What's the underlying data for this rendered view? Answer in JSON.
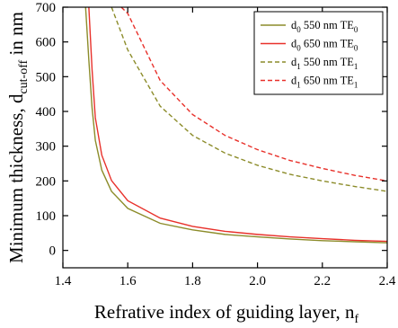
{
  "chart_data": {
    "type": "line",
    "title": "",
    "xlabel": {
      "main": "Refrative index of guiding layer, n",
      "sub": "f"
    },
    "ylabel": {
      "main": "Minimum thickness, d",
      "sub": "cut-off",
      "tail": " in nm"
    },
    "xlim": [
      1.4,
      2.4
    ],
    "ylim": [
      -50,
      700
    ],
    "xticks": [
      "1.4",
      "1.6",
      "1.8",
      "2.0",
      "2.2",
      "2.4"
    ],
    "yticks": [
      "0",
      "100",
      "200",
      "300",
      "400",
      "500",
      "600",
      "700"
    ],
    "grid": false,
    "legend_position": "top-right",
    "series": [
      {
        "name": "d0 550 nm TE0",
        "legend": {
          "pre": "d",
          "preSub": "0",
          "mid": " 550 nm TE",
          "postSub": "0"
        },
        "color": "#8c8c2a",
        "dash": "solid",
        "x": [
          1.47,
          1.48,
          1.49,
          1.5,
          1.52,
          1.55,
          1.6,
          1.7,
          1.8,
          1.9,
          2.0,
          2.1,
          2.2,
          2.3,
          2.4
        ],
        "y": [
          700,
          548,
          410,
          317,
          231,
          170,
          121,
          78,
          59,
          46,
          39,
          33,
          28,
          25,
          22
        ]
      },
      {
        "name": "d0 650 nm TE0",
        "legend": {
          "pre": "d",
          "preSub": "0",
          "mid": " 650 nm TE",
          "postSub": "0"
        },
        "color": "#e8312b",
        "dash": "solid",
        "x": [
          1.48,
          1.49,
          1.5,
          1.52,
          1.55,
          1.6,
          1.7,
          1.8,
          1.9,
          2.0,
          2.1,
          2.2,
          2.3,
          2.4
        ],
        "y": [
          700,
          520,
          382,
          274,
          201,
          143,
          93,
          69,
          55,
          46,
          39,
          34,
          29,
          26
        ]
      },
      {
        "name": "d1 550 nm TE1",
        "legend": {
          "pre": "d",
          "preSub": "1",
          "mid": " 550 nm TE",
          "postSub": "1"
        },
        "color": "#8c8c2a",
        "dash": "dashed",
        "x": [
          1.55,
          1.6,
          1.7,
          1.8,
          1.9,
          2.0,
          2.1,
          2.2,
          2.3,
          2.4
        ],
        "y": [
          700,
          577,
          415,
          331,
          280,
          245,
          219,
          200,
          184,
          170
        ]
      },
      {
        "name": "d1 650 nm TE1",
        "legend": {
          "pre": "d",
          "preSub": "1",
          "mid": " 650 nm TE",
          "postSub": "1"
        },
        "color": "#e8312b",
        "dash": "dashed",
        "x": [
          1.58,
          1.6,
          1.7,
          1.8,
          1.9,
          2.0,
          2.1,
          2.2,
          2.3,
          2.4
        ],
        "y": [
          700,
          682,
          489,
          391,
          331,
          290,
          259,
          236,
          216,
          200
        ]
      }
    ]
  }
}
